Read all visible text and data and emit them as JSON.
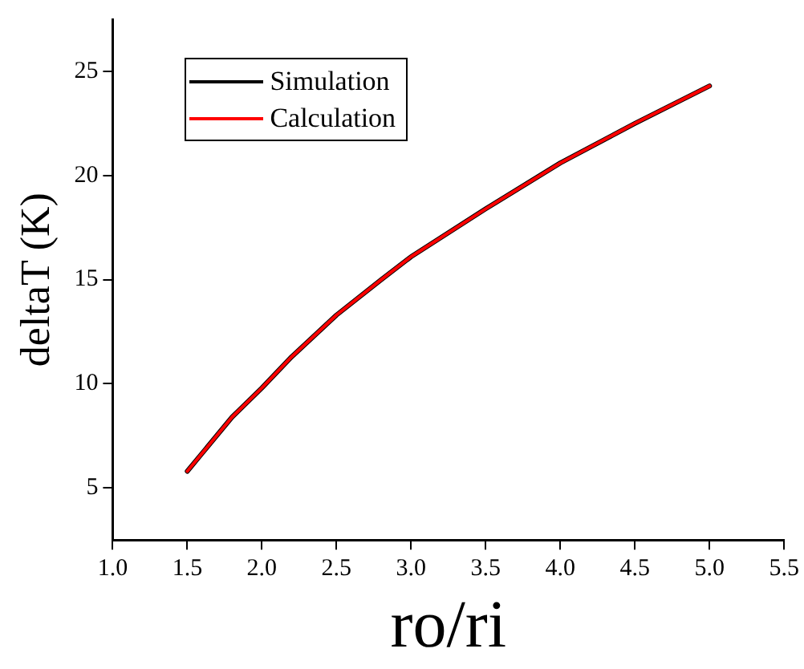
{
  "chart_data": {
    "type": "line",
    "xlabel": "ro/ri",
    "ylabel": "deltaT (K)",
    "x": [
      1.5,
      1.8,
      2.0,
      2.2,
      2.5,
      2.8,
      3.0,
      3.5,
      4.0,
      4.5,
      5.0
    ],
    "series": [
      {
        "name": "Simulation",
        "color": "#000000",
        "values": [
          5.8,
          8.4,
          9.8,
          11.3,
          13.3,
          15.0,
          16.1,
          18.4,
          20.6,
          22.5,
          24.3
        ]
      },
      {
        "name": "Calculation",
        "color": "#ff0000",
        "values": [
          5.8,
          8.4,
          9.8,
          11.3,
          13.3,
          15.0,
          16.1,
          18.4,
          20.6,
          22.5,
          24.3
        ]
      }
    ],
    "xlim": [
      1.0,
      5.5
    ],
    "xticks": [
      {
        "value": 1,
        "label": "1.0"
      },
      1.5,
      {
        "value": 2,
        "label": "2.0"
      },
      2.5,
      {
        "value": 3,
        "label": "3.0"
      },
      3.5,
      {
        "value": 4,
        "label": "4.0"
      },
      4.5,
      {
        "value": 5,
        "label": "5.0"
      },
      5.5
    ],
    "ylim": [
      2.5,
      27.5
    ],
    "yticks": [
      5,
      10,
      15,
      20,
      25
    ],
    "grid": false,
    "legend": "top left",
    "marker": "none",
    "line_style": "solid"
  }
}
